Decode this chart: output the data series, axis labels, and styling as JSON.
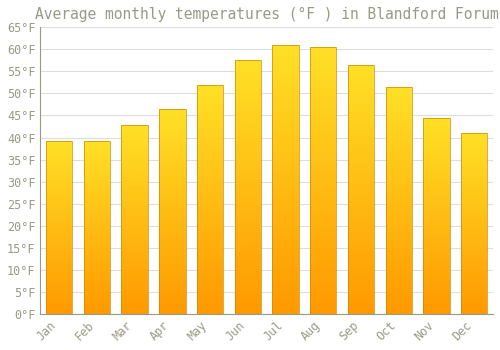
{
  "title": "Average monthly temperatures (°F ) in Blandford Forum",
  "months": [
    "Jan",
    "Feb",
    "Mar",
    "Apr",
    "May",
    "Jun",
    "Jul",
    "Aug",
    "Sep",
    "Oct",
    "Nov",
    "Dec"
  ],
  "values": [
    39.2,
    39.2,
    42.8,
    46.4,
    52.0,
    57.5,
    61.0,
    60.5,
    56.5,
    51.5,
    44.5,
    41.0
  ],
  "bar_color": "#FFA500",
  "bar_gradient_top": "#FFD060",
  "bar_gradient_bottom": "#FFA010",
  "bar_edge_color": "#CC8800",
  "background_color": "#FFFFFF",
  "grid_color": "#DDDDDD",
  "text_color": "#999988",
  "ylim": [
    0,
    65
  ],
  "yticks": [
    0,
    5,
    10,
    15,
    20,
    25,
    30,
    35,
    40,
    45,
    50,
    55,
    60,
    65
  ],
  "title_fontsize": 10.5,
  "tick_fontsize": 8.5,
  "bar_width": 0.7
}
